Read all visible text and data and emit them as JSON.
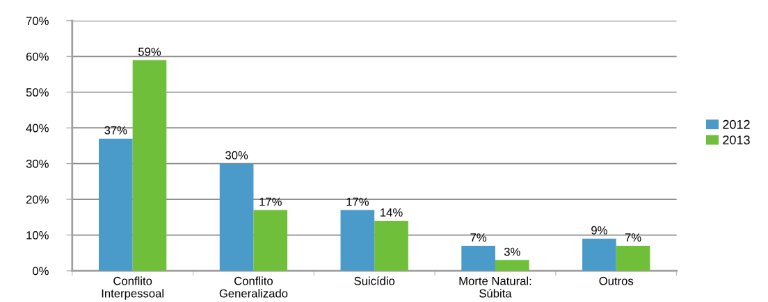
{
  "chart_data": {
    "type": "bar",
    "categories": [
      "Conflito\nInterpessoal",
      "Conflito\nGeneralizado",
      "Suicídio",
      "Morte Natural:\nSúbita",
      "Outros"
    ],
    "series": [
      {
        "name": "2012",
        "color": "#4a9aca",
        "values": [
          37,
          30,
          17,
          7,
          9
        ],
        "value_labels": [
          "37%",
          "30%",
          "17%",
          "7%",
          "9%"
        ]
      },
      {
        "name": "2013",
        "color": "#6fbf3a",
        "values": [
          59,
          17,
          14,
          3,
          7
        ],
        "value_labels": [
          "59%",
          "17%",
          "14%",
          "3%",
          "7%"
        ]
      }
    ],
    "ylim": [
      0,
      70
    ],
    "yticks": [
      {
        "value": 0,
        "label": "0%"
      },
      {
        "value": 10,
        "label": "10%"
      },
      {
        "value": 20,
        "label": "20%"
      },
      {
        "value": 30,
        "label": "30%"
      },
      {
        "value": 40,
        "label": "40%"
      },
      {
        "value": 50,
        "label": "50%"
      },
      {
        "value": 60,
        "label": "60%"
      },
      {
        "value": 70,
        "label": "70%"
      }
    ],
    "grid": "y",
    "legend": "right"
  }
}
